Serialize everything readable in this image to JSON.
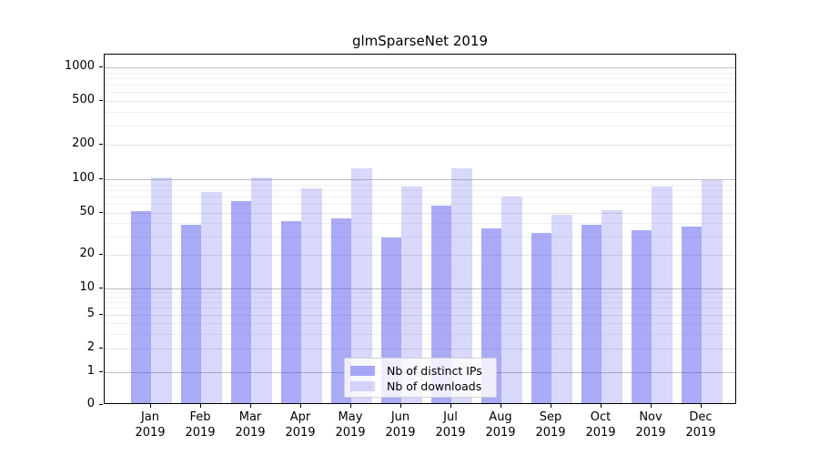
{
  "chart_data": {
    "type": "bar",
    "title": "glmSparseNet 2019",
    "categories": [
      "Jan 2019",
      "Feb 2019",
      "Mar 2019",
      "Apr 2019",
      "May 2019",
      "Jun 2019",
      "Jul 2019",
      "Aug 2019",
      "Sep 2019",
      "Oct 2019",
      "Nov 2019",
      "Dec 2019"
    ],
    "x_axis": {
      "months": [
        "Jan",
        "Feb",
        "Mar",
        "Apr",
        "May",
        "Jun",
        "Jul",
        "Aug",
        "Sep",
        "Oct",
        "Nov",
        "Dec"
      ],
      "year": "2019"
    },
    "y_axis": {
      "scale": "log-like (symlog)",
      "tick_labels": [
        "0",
        "1",
        "2",
        "5",
        "10",
        "20",
        "50",
        "100",
        "200",
        "500",
        "1000"
      ],
      "tick_values": [
        0,
        1,
        2,
        5,
        10,
        20,
        50,
        100,
        200,
        500,
        1000
      ],
      "grid": true
    },
    "series": [
      {
        "name": "Nb of distinct IPs",
        "color": "#5555ee",
        "opacity": 0.5,
        "values": [
          50,
          37,
          61,
          40,
          43,
          28,
          56,
          34,
          31,
          37,
          33,
          36
        ]
      },
      {
        "name": "Nb of downloads",
        "color": "#5555ee",
        "opacity": 0.23,
        "values": [
          100,
          74,
          100,
          80,
          120,
          83,
          120,
          67,
          46,
          51,
          83,
          94
        ]
      }
    ],
    "legend": {
      "position": "lower center",
      "entries": [
        "Nb of distinct IPs",
        "Nb of downloads"
      ]
    }
  }
}
